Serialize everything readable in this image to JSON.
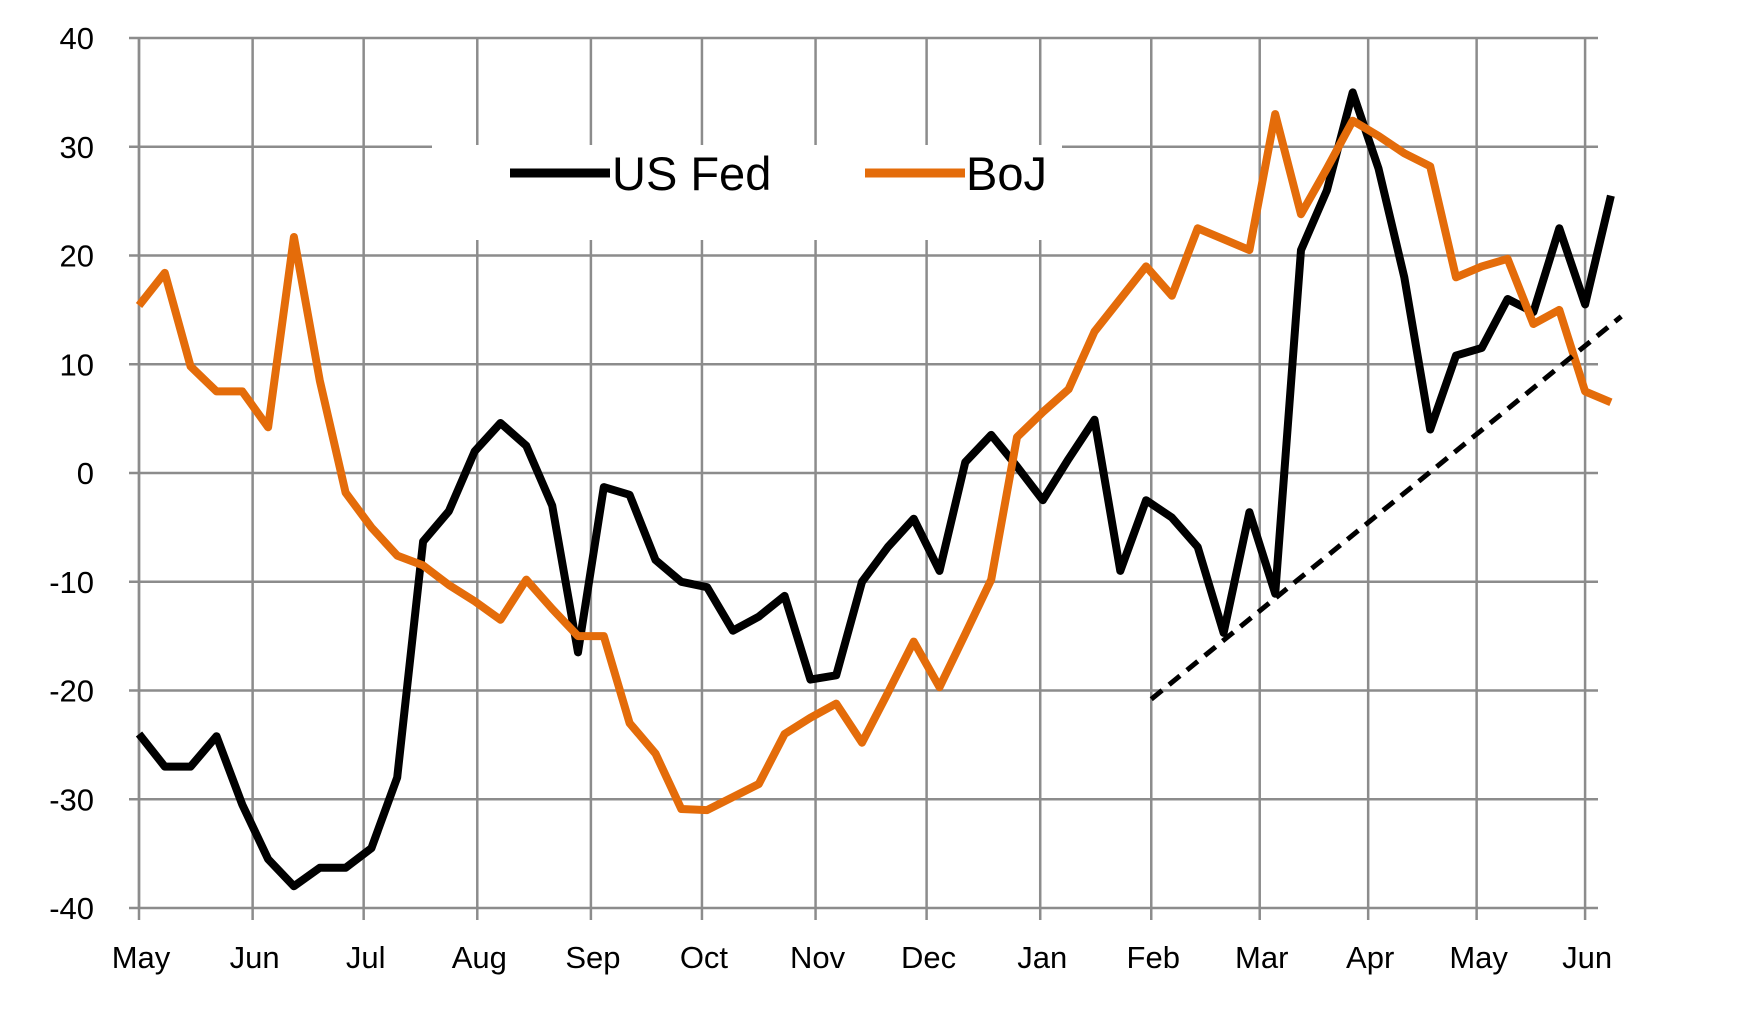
{
  "chart_data": {
    "type": "line",
    "title": "",
    "xlabel": "",
    "ylabel": "",
    "ylim": [
      -40,
      40
    ],
    "yticks": [
      40,
      30,
      20,
      10,
      0,
      -10,
      -20,
      -30,
      -40
    ],
    "grid": true,
    "legend": "top-center",
    "x_tick_labels": [
      "May",
      "Jun",
      "Jul",
      "Aug",
      "Sep",
      "Oct",
      "Nov",
      "Dec",
      "Jan",
      "Feb",
      "Mar",
      "Apr",
      "May",
      "Jun"
    ],
    "x_ticks_week_index": [
      0,
      4.4,
      8.7,
      13.1,
      17.5,
      21.8,
      26.2,
      30.5,
      34.9,
      39.2,
      43.4,
      47.6,
      51.8,
      56.0
    ],
    "x_min_week": 0,
    "x_max_week": 56.5,
    "series": [
      {
        "name": "US Fed",
        "color": "#000000",
        "values": [
          -24.0,
          -27.0,
          -27.0,
          -24.2,
          -30.5,
          -35.5,
          -38.0,
          -36.3,
          -36.3,
          -34.5,
          -28.0,
          -6.3,
          -3.5,
          2.0,
          4.6,
          2.5,
          -3.0,
          -16.5,
          -1.3,
          -2.0,
          -8.0,
          -10.0,
          -10.5,
          -14.5,
          -13.2,
          -11.3,
          -19.0,
          -18.6,
          -10.0,
          -6.8,
          -4.2,
          -9.0,
          1.0,
          3.5,
          0.6,
          -2.5,
          1.3,
          4.9,
          -9.0,
          -2.5,
          -4.1,
          -6.8,
          -14.7,
          -3.6,
          -11.1,
          20.5,
          26.0,
          35.0,
          28.0,
          18.0,
          4.0,
          10.8,
          11.5,
          16.0,
          14.8,
          22.5,
          15.5,
          25.5
        ]
      },
      {
        "name": "BoJ",
        "color": "#E46C0A",
        "values": [
          15.4,
          18.4,
          9.8,
          7.5,
          7.5,
          4.2,
          21.7,
          8.5,
          -1.8,
          -5.0,
          -7.6,
          -8.5,
          -10.3,
          -11.8,
          -13.5,
          -9.8,
          -12.5,
          -15.0,
          -15.0,
          -23.0,
          -25.8,
          -30.9,
          -31.0,
          -29.8,
          -28.6,
          -24.0,
          -22.5,
          -21.2,
          -24.8,
          -20.2,
          -15.5,
          -19.7,
          -14.8,
          -9.8,
          3.3,
          5.6,
          7.7,
          13.0,
          16.0,
          19.0,
          16.3,
          22.5,
          21.5,
          20.5,
          33.0,
          23.8,
          28.0,
          32.4,
          31.0,
          29.4,
          28.2,
          18.0,
          19.0,
          19.7,
          13.7,
          15.0,
          7.5,
          6.5
        ]
      }
    ],
    "trendline": {
      "style": "dashed",
      "color": "#000000",
      "x_weeks": [
        39.2,
        57.4
      ],
      "y": [
        -20.8,
        14.4
      ]
    }
  }
}
